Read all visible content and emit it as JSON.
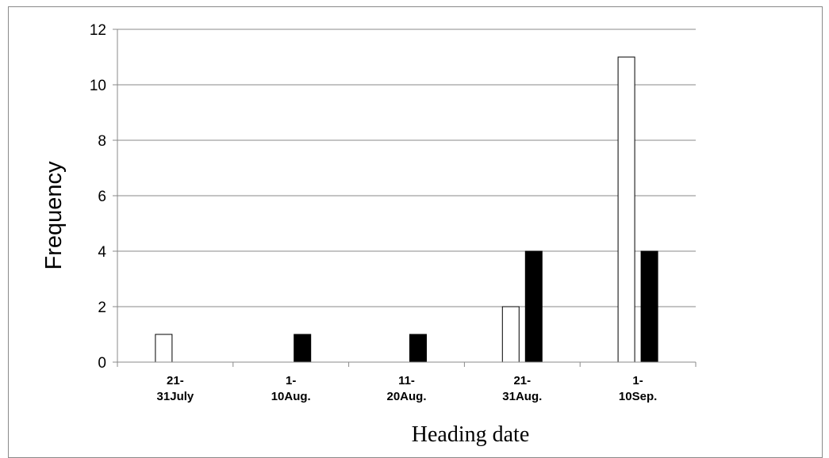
{
  "chart_data": {
    "type": "bar",
    "title": "",
    "xlabel": "Heading date",
    "ylabel": "Frequency",
    "ylim": [
      0,
      12
    ],
    "yticks": [
      "0",
      "2",
      "4",
      "6",
      "8",
      "10",
      "12"
    ],
    "categories": [
      [
        "21-",
        "31July"
      ],
      [
        "1-",
        "10Aug."
      ],
      [
        "11-",
        "20Aug."
      ],
      [
        "21-",
        "31Aug."
      ],
      [
        "1-",
        "10Sep."
      ]
    ],
    "series": [
      {
        "values": [
          1,
          0,
          0,
          2,
          11
        ],
        "fill": "#ffffff",
        "stroke": "#000000"
      },
      {
        "values": [
          0,
          1,
          1,
          4,
          4
        ],
        "fill": "#000000",
        "stroke": "#000000"
      }
    ],
    "grid": true,
    "legend": "none"
  }
}
